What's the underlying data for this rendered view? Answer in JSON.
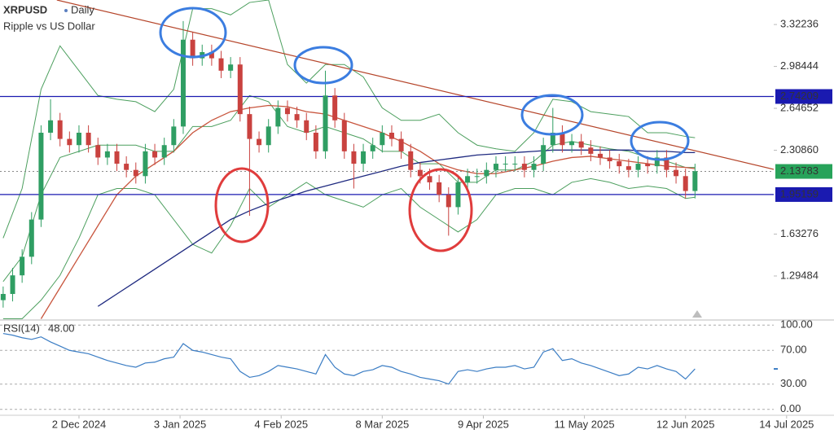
{
  "header": {
    "symbol": "XRPUSD",
    "interval": "Daily",
    "description": "Ripple vs US Dollar"
  },
  "chart_data": [
    {
      "type": "candlestick",
      "x": [
        "2024-11-08",
        "2024-11-11",
        "2024-11-14",
        "2024-11-17",
        "2024-11-20",
        "2024-11-23",
        "2024-11-26",
        "2024-11-29",
        "2024-12-02",
        "2024-12-05",
        "2024-12-08",
        "2024-12-11",
        "2024-12-14",
        "2024-12-17",
        "2024-12-20",
        "2024-12-23",
        "2024-12-26",
        "2024-12-29",
        "2025-01-01",
        "2025-01-04",
        "2025-01-07",
        "2025-01-10",
        "2025-01-13",
        "2025-01-16",
        "2025-01-19",
        "2025-01-22",
        "2025-01-25",
        "2025-01-28",
        "2025-01-31",
        "2025-02-03",
        "2025-02-06",
        "2025-02-09",
        "2025-02-12",
        "2025-02-15",
        "2025-02-18",
        "2025-02-21",
        "2025-02-24",
        "2025-02-27",
        "2025-03-02",
        "2025-03-05",
        "2025-03-08",
        "2025-03-11",
        "2025-03-14",
        "2025-03-17",
        "2025-03-20",
        "2025-03-23",
        "2025-03-26",
        "2025-03-29",
        "2025-04-01",
        "2025-04-04",
        "2025-04-07",
        "2025-04-10",
        "2025-04-13",
        "2025-04-16",
        "2025-04-19",
        "2025-04-22",
        "2025-04-25",
        "2025-04-28",
        "2025-05-01",
        "2025-05-04",
        "2025-05-07",
        "2025-05-10",
        "2025-05-13",
        "2025-05-16",
        "2025-05-19",
        "2025-05-22",
        "2025-05-25",
        "2025-05-28",
        "2025-05-31",
        "2025-06-03",
        "2025-06-06",
        "2025-06-09",
        "2025-06-12",
        "2025-06-15"
      ],
      "open": [
        1.1,
        1.15,
        1.3,
        1.45,
        1.75,
        2.45,
        2.55,
        2.4,
        2.35,
        2.45,
        2.35,
        2.25,
        2.3,
        2.2,
        2.15,
        2.1,
        2.3,
        2.25,
        2.35,
        2.5,
        3.2,
        3.05,
        3.1,
        3.05,
        2.95,
        3.0,
        2.6,
        2.4,
        2.35,
        2.5,
        2.65,
        2.6,
        2.55,
        2.45,
        2.3,
        2.75,
        2.55,
        2.3,
        2.2,
        2.3,
        2.35,
        2.45,
        2.4,
        2.3,
        2.15,
        2.1,
        2.05,
        1.95,
        1.85,
        2.05,
        2.1,
        2.1,
        2.15,
        2.2,
        2.2,
        2.2,
        2.15,
        2.2,
        2.35,
        2.45,
        2.35,
        2.38,
        2.33,
        2.28,
        2.25,
        2.22,
        2.18,
        2.15,
        2.2,
        2.18,
        2.25,
        2.15,
        2.1,
        1.98
      ],
      "high": [
        1.21,
        1.36,
        1.51,
        1.81,
        2.51,
        2.72,
        2.61,
        2.46,
        2.51,
        2.51,
        2.41,
        2.36,
        2.36,
        2.26,
        2.21,
        2.36,
        2.36,
        2.41,
        2.56,
        3.35,
        3.26,
        3.16,
        3.16,
        3.11,
        3.06,
        3.06,
        2.66,
        2.46,
        2.56,
        2.71,
        2.71,
        2.66,
        2.61,
        2.51,
        2.95,
        2.81,
        2.61,
        2.36,
        2.36,
        2.41,
        2.51,
        2.51,
        2.46,
        2.36,
        2.21,
        2.16,
        2.11,
        2.01,
        2.11,
        2.16,
        2.16,
        2.21,
        2.26,
        2.26,
        2.26,
        2.26,
        2.26,
        2.41,
        2.65,
        2.51,
        2.44,
        2.44,
        2.39,
        2.34,
        2.31,
        2.28,
        2.24,
        2.26,
        2.26,
        2.31,
        2.31,
        2.21,
        2.16,
        2.2
      ],
      "low": [
        1.04,
        1.09,
        1.24,
        1.39,
        1.69,
        2.39,
        2.34,
        2.29,
        2.29,
        2.29,
        2.19,
        2.19,
        2.14,
        2.09,
        2.04,
        2.04,
        2.19,
        2.19,
        2.29,
        2.44,
        2.99,
        2.99,
        2.99,
        2.89,
        2.89,
        2.54,
        1.78,
        2.29,
        2.29,
        2.44,
        2.54,
        2.49,
        2.39,
        2.24,
        2.24,
        2.49,
        2.24,
        2.0,
        2.14,
        2.24,
        2.29,
        2.34,
        2.24,
        2.09,
        2.04,
        1.99,
        1.89,
        1.62,
        1.79,
        1.99,
        2.04,
        2.04,
        2.09,
        2.14,
        2.14,
        2.09,
        2.09,
        2.14,
        2.29,
        2.29,
        2.29,
        2.27,
        2.22,
        2.19,
        2.16,
        2.12,
        2.09,
        2.09,
        2.12,
        2.12,
        2.09,
        2.04,
        1.92,
        1.92
      ],
      "close": [
        1.15,
        1.3,
        1.45,
        1.75,
        2.45,
        2.55,
        2.4,
        2.35,
        2.45,
        2.35,
        2.25,
        2.3,
        2.2,
        2.15,
        2.1,
        2.3,
        2.25,
        2.35,
        2.5,
        3.2,
        3.05,
        3.1,
        3.05,
        2.95,
        3.0,
        2.6,
        2.4,
        2.35,
        2.5,
        2.65,
        2.6,
        2.55,
        2.45,
        2.3,
        2.75,
        2.55,
        2.3,
        2.2,
        2.3,
        2.35,
        2.45,
        2.4,
        2.3,
        2.15,
        2.1,
        2.05,
        1.95,
        1.85,
        2.05,
        2.1,
        2.1,
        2.15,
        2.2,
        2.2,
        2.2,
        2.15,
        2.2,
        2.35,
        2.45,
        2.35,
        2.38,
        2.33,
        2.28,
        2.25,
        2.22,
        2.18,
        2.15,
        2.2,
        2.18,
        2.25,
        2.15,
        2.1,
        1.98,
        2.14
      ],
      "up_color": "#2f9e63",
      "down_color": "#c9423f",
      "xlim": [
        "2024-11-07",
        "2025-07-29"
      ],
      "xticks": [
        {
          "value": "2024-12-02",
          "label": "2 Dec 2024"
        },
        {
          "value": "2025-01-03",
          "label": "3 Jan 2025"
        },
        {
          "value": "2025-02-04",
          "label": "4 Feb 2025"
        },
        {
          "value": "2025-03-08",
          "label": "8 Mar 2025"
        },
        {
          "value": "2025-04-09",
          "label": "9 Apr 2025"
        },
        {
          "value": "2025-05-11",
          "label": "11 May 2025"
        },
        {
          "value": "2025-06-12",
          "label": "12 Jun 2025"
        },
        {
          "value": "2025-07-14",
          "label": "14 Jul 2025"
        }
      ],
      "ylim": [
        0.94,
        3.52
      ],
      "yticks": [
        3.32236,
        2.98444,
        2.64652,
        {
          "value": 2.3086,
          "label": "2.30860"
        },
        1.63276,
        1.29484
      ],
      "levels": [
        {
          "value": 2.74209,
          "color": "#1a1ab0"
        },
        {
          "value": 1.95159,
          "color": "#1a1ab0"
        }
      ],
      "last_price": {
        "value": 2.13783,
        "color": "#27a35a"
      },
      "trendline": {
        "x": [
          "2024-11-25",
          "2025-07-29"
        ],
        "values": [
          3.52,
          2.04
        ],
        "color": "#b5452a"
      },
      "overlays": {
        "x": [
          "2024-11-08",
          "2024-11-14",
          "2024-11-20",
          "2024-11-26",
          "2024-12-02",
          "2024-12-08",
          "2024-12-14",
          "2024-12-20",
          "2024-12-26",
          "2025-01-01",
          "2025-01-07",
          "2025-01-13",
          "2025-01-19",
          "2025-01-25",
          "2025-01-31",
          "2025-02-06",
          "2025-02-12",
          "2025-02-18",
          "2025-02-24",
          "2025-03-02",
          "2025-03-08",
          "2025-03-14",
          "2025-03-20",
          "2025-03-26",
          "2025-04-01",
          "2025-04-07",
          "2025-04-13",
          "2025-04-19",
          "2025-04-25",
          "2025-05-01",
          "2025-05-07",
          "2025-05-13",
          "2025-05-19",
          "2025-05-25",
          "2025-05-31",
          "2025-06-06",
          "2025-06-12",
          "2025-06-15"
        ],
        "series": [
          {
            "color": "#4c9f5e",
            "values": [
              1.6,
              2.0,
              2.8,
              3.15,
              2.95,
              2.75,
              2.72,
              2.7,
              2.62,
              2.8,
              3.45,
              3.45,
              3.4,
              3.5,
              3.52,
              3.0,
              2.85,
              3.0,
              3.0,
              2.9,
              2.65,
              2.55,
              2.55,
              2.6,
              2.45,
              2.35,
              2.32,
              2.3,
              2.45,
              2.72,
              2.7,
              2.62,
              2.6,
              2.58,
              2.45,
              2.45,
              2.42,
              2.41
            ]
          },
          {
            "color": "#4c9f5e",
            "values": [
              0.95,
              0.95,
              1.1,
              1.3,
              1.6,
              1.95,
              2.0,
              2.0,
              1.95,
              1.75,
              1.55,
              1.48,
              1.7,
              2.0,
              1.85,
              1.95,
              2.05,
              1.95,
              1.9,
              1.85,
              1.95,
              2.0,
              1.85,
              1.75,
              1.65,
              1.75,
              1.95,
              2.0,
              2.0,
              1.95,
              2.05,
              2.08,
              2.05,
              2.0,
              2.02,
              2.0,
              1.92,
              1.93
            ]
          },
          {
            "color": "#4c9f5e",
            "values": [
              1.25,
              1.45,
              1.95,
              2.25,
              2.3,
              2.35,
              2.35,
              2.35,
              2.3,
              2.3,
              2.5,
              2.5,
              2.55,
              2.75,
              2.7,
              2.5,
              2.45,
              2.5,
              2.45,
              2.4,
              2.3,
              2.3,
              2.2,
              2.2,
              2.05,
              2.05,
              2.15,
              2.15,
              2.22,
              2.35,
              2.38,
              2.35,
              2.32,
              2.3,
              2.25,
              2.22,
              2.17,
              2.17
            ]
          },
          {
            "color": "#c8553d",
            "values": [
              null,
              null,
              0.95,
              1.2,
              1.45,
              1.7,
              1.95,
              2.1,
              2.2,
              2.3,
              2.45,
              2.55,
              2.62,
              2.65,
              2.67,
              2.66,
              2.62,
              2.6,
              2.55,
              2.5,
              2.45,
              2.38,
              2.3,
              2.2,
              2.15,
              2.12,
              2.12,
              2.15,
              2.18,
              2.22,
              2.25,
              2.26,
              2.24,
              2.22,
              2.2,
              2.18,
              2.17,
              2.16
            ]
          },
          {
            "color": "#1f2a80",
            "values": [
              null,
              null,
              null,
              null,
              null,
              1.05,
              1.15,
              1.25,
              1.35,
              1.45,
              1.55,
              1.65,
              1.75,
              1.82,
              1.88,
              1.93,
              1.98,
              2.02,
              2.06,
              2.1,
              2.14,
              2.18,
              2.21,
              2.23,
              2.25,
              2.27,
              2.28,
              2.29,
              2.3,
              2.31,
              2.31,
              2.31,
              2.31,
              2.31,
              2.3,
              2.3,
              2.29,
              2.29
            ]
          }
        ]
      }
    },
    {
      "type": "line",
      "title": "RSI(14)",
      "last": {
        "value": 48,
        "label": "48.00"
      },
      "color": "#3b7dc4",
      "values": [
        90,
        88,
        85,
        83,
        86,
        80,
        75,
        70,
        68,
        66,
        62,
        58,
        55,
        52,
        50,
        55,
        56,
        60,
        62,
        78,
        70,
        68,
        65,
        62,
        60,
        45,
        38,
        40,
        45,
        52,
        50,
        48,
        45,
        42,
        65,
        50,
        42,
        40,
        45,
        47,
        52,
        50,
        45,
        42,
        38,
        36,
        34,
        30,
        45,
        47,
        45,
        48,
        50,
        50,
        52,
        48,
        50,
        68,
        72,
        58,
        60,
        55,
        52,
        48,
        44,
        40,
        42,
        50,
        48,
        52,
        48,
        45,
        36,
        48
      ],
      "ylim": [
        -7,
        106
      ],
      "yticks": [
        {
          "value": 100,
          "label": "100.00"
        },
        {
          "value": 70,
          "label": "70.00"
        },
        {
          "value": 30,
          "label": "30.00"
        },
        {
          "value": 0,
          "label": "0.00"
        }
      ],
      "grid": true
    }
  ]
}
